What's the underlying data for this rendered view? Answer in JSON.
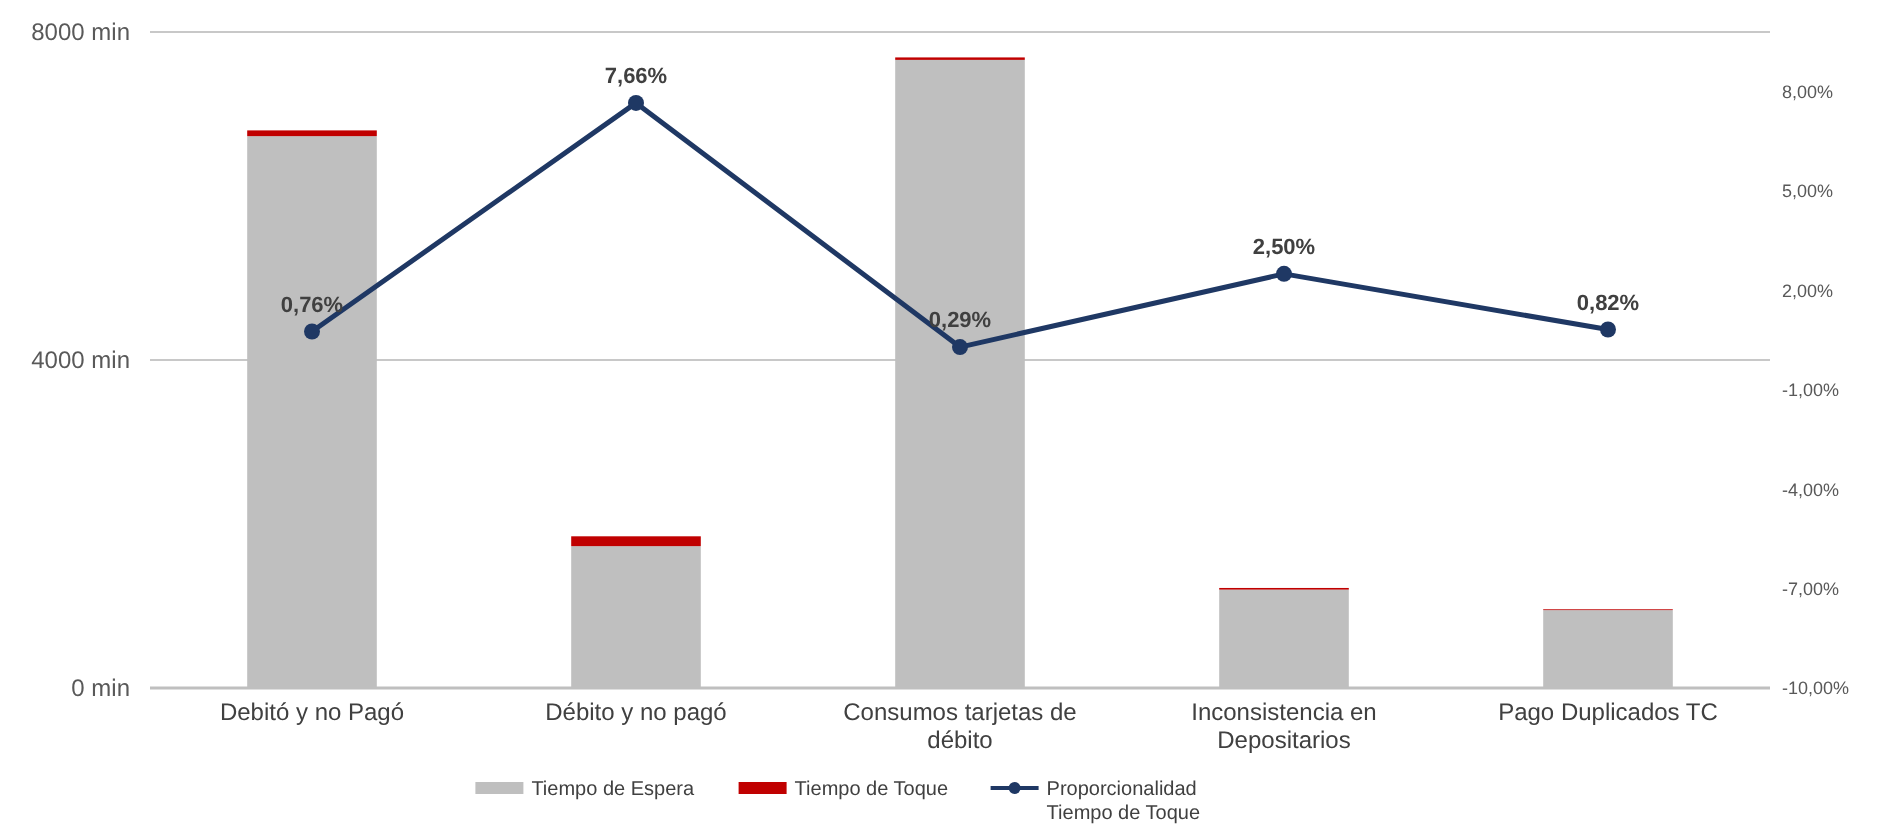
{
  "chart_data": {
    "type": "bar",
    "stacked": true,
    "categories": [
      "Debitó y no Pagó",
      "Débito y no pagó",
      "Consumos tarjetas de débito",
      "Inconsistencia en Depositarios",
      "Pago Duplicados TC"
    ],
    "series": [
      {
        "name": "Tiempo de Espera",
        "color": "#bfbfbf",
        "values": [
          6730,
          1730,
          7660,
          1200,
          950
        ]
      },
      {
        "name": "Tiempo de Toque",
        "color": "#c00000",
        "values": [
          70,
          120,
          30,
          20,
          10
        ]
      },
      {
        "name": "Proporcionalidad Tiempo de Toque",
        "type": "line",
        "axis": "y2",
        "color": "#1f3864",
        "marker": "circle",
        "values": [
          0.76,
          7.66,
          0.29,
          2.5,
          0.82
        ],
        "value_labels": [
          "0,76%",
          "7,66%",
          "0,29%",
          "2,50%",
          "0,82%"
        ]
      }
    ],
    "ylim": [
      0,
      8000
    ],
    "yticks": [
      {
        "value": 0,
        "label": "0 min"
      },
      {
        "value": 4000,
        "label": "4000 min"
      },
      {
        "value": 8000,
        "label": "8000 min"
      }
    ],
    "y2lim": [
      -10,
      9.8
    ],
    "y2ticks": [
      {
        "value": -10,
        "label": "-10,00%"
      },
      {
        "value": -7,
        "label": "-7,00%"
      },
      {
        "value": -4,
        "label": "-4,00%"
      },
      {
        "value": -1,
        "label": "-1,00%"
      },
      {
        "value": 2,
        "label": "2,00%"
      },
      {
        "value": 5,
        "label": "5,00%"
      },
      {
        "value": 8,
        "label": "8,00%"
      }
    ],
    "grid": "y",
    "legend": "bottom"
  }
}
